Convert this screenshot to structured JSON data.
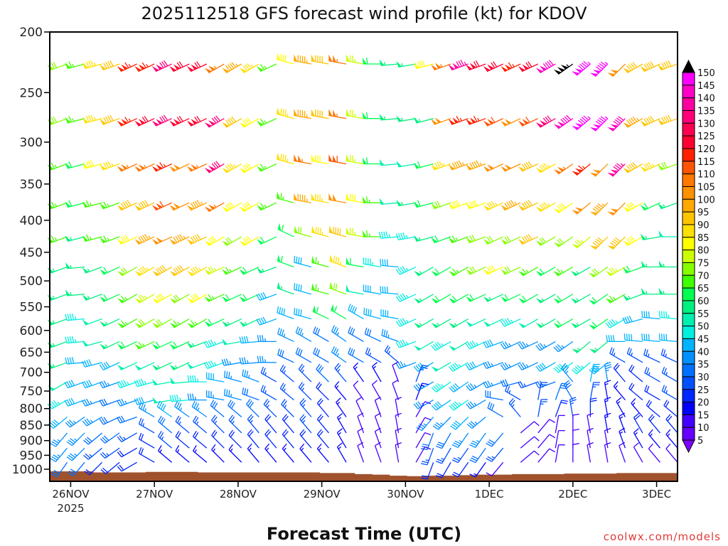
{
  "chart_data": {
    "type": "wind-barb",
    "title": "2025112518 GFS forecast wind profile (kt) for KDOV",
    "xlabel": "Forecast Time (UTC)",
    "credit": "coolwx.com/models",
    "y_ticks": [
      200,
      250,
      300,
      350,
      400,
      450,
      500,
      550,
      600,
      650,
      700,
      750,
      800,
      850,
      900,
      950,
      1000
    ],
    "ylim": [
      200,
      1000
    ],
    "yscale": "log",
    "x_ticks": [
      {
        "hour": 6,
        "label": "26NOV",
        "sub": "2025"
      },
      {
        "hour": 30,
        "label": "27NOV"
      },
      {
        "hour": 54,
        "label": "28NOV"
      },
      {
        "hour": 78,
        "label": "29NOV"
      },
      {
        "hour": 102,
        "label": "30NOV"
      },
      {
        "hour": 126,
        "label": "1DEC"
      },
      {
        "hour": 150,
        "label": "2DEC"
      },
      {
        "hour": 174,
        "label": "3DEC"
      }
    ],
    "xlim_hours": [
      0,
      180
    ],
    "hours": [
      5,
      10,
      15,
      20,
      25,
      30,
      35,
      40,
      45,
      50,
      55,
      60,
      65,
      70,
      75,
      80,
      85,
      90,
      95,
      100,
      105,
      110,
      115,
      120,
      125,
      130,
      135,
      140,
      145,
      150,
      155,
      160,
      165,
      170,
      175,
      180
    ],
    "levels": [
      225,
      275,
      325,
      375,
      425,
      475,
      525,
      575,
      625,
      675,
      725,
      775,
      825,
      875,
      925,
      975
    ],
    "speed_kt": [
      [
        70,
        65,
        85,
        90,
        115,
        115,
        130,
        120,
        120,
        105,
        95,
        85,
        65,
        80,
        95,
        90,
        105,
        75,
        60,
        55,
        55,
        80,
        105,
        135,
        120,
        120,
        115,
        120,
        140,
        155,
        145,
        145,
        100,
        90,
        90,
        90
      ],
      [
        70,
        65,
        85,
        90,
        115,
        120,
        130,
        120,
        120,
        130,
        90,
        80,
        65,
        85,
        95,
        90,
        105,
        75,
        60,
        55,
        55,
        55,
        100,
        115,
        115,
        110,
        100,
        110,
        130,
        140,
        145,
        145,
        140,
        95,
        90,
        90
      ],
      [
        65,
        60,
        80,
        85,
        105,
        105,
        115,
        100,
        105,
        130,
        85,
        80,
        65,
        85,
        105,
        80,
        110,
        75,
        60,
        50,
        50,
        60,
        85,
        95,
        95,
        100,
        100,
        90,
        85,
        105,
        115,
        100,
        135,
        90,
        85,
        70
      ],
      [
        65,
        60,
        65,
        65,
        90,
        90,
        110,
        100,
        95,
        105,
        80,
        80,
        65,
        65,
        95,
        85,
        100,
        80,
        65,
        50,
        55,
        60,
        70,
        80,
        80,
        85,
        95,
        90,
        85,
        80,
        100,
        95,
        100,
        80,
        60,
        55
      ],
      [
        65,
        55,
        65,
        65,
        80,
        95,
        100,
        95,
        90,
        80,
        70,
        80,
        60,
        60,
        70,
        85,
        90,
        75,
        65,
        45,
        45,
        55,
        60,
        65,
        70,
        70,
        70,
        90,
        70,
        70,
        75,
        90,
        90,
        80,
        55,
        50
      ],
      [
        55,
        55,
        55,
        60,
        70,
        85,
        90,
        90,
        85,
        75,
        65,
        60,
        55,
        60,
        40,
        65,
        85,
        60,
        45,
        40,
        45,
        55,
        60,
        65,
        70,
        80,
        70,
        65,
        60,
        65,
        55,
        70,
        75,
        60,
        55,
        55
      ],
      [
        55,
        55,
        55,
        60,
        65,
        75,
        80,
        70,
        80,
        65,
        60,
        60,
        40,
        55,
        40,
        65,
        70,
        50,
        40,
        40,
        45,
        55,
        60,
        60,
        60,
        55,
        60,
        60,
        55,
        60,
        55,
        60,
        65,
        55,
        55,
        55
      ],
      [
        55,
        45,
        50,
        55,
        65,
        70,
        70,
        65,
        65,
        60,
        55,
        55,
        40,
        40,
        40,
        60,
        60,
        40,
        40,
        40,
        45,
        55,
        55,
        55,
        50,
        50,
        45,
        50,
        55,
        60,
        55,
        60,
        45,
        40,
        40,
        45
      ],
      [
        55,
        45,
        50,
        55,
        60,
        65,
        60,
        60,
        55,
        45,
        50,
        40,
        35,
        35,
        35,
        30,
        35,
        30,
        30,
        35,
        45,
        50,
        45,
        50,
        45,
        40,
        35,
        35,
        35,
        35,
        55,
        55,
        40,
        40,
        40,
        40
      ],
      [
        55,
        40,
        40,
        40,
        50,
        50,
        55,
        55,
        50,
        45,
        35,
        35,
        35,
        30,
        30,
        30,
        35,
        30,
        25,
        25,
        35,
        40,
        50,
        45,
        40,
        35,
        35,
        35,
        40,
        45,
        45,
        40,
        25,
        25,
        25,
        25
      ],
      [
        50,
        40,
        40,
        35,
        45,
        45,
        50,
        50,
        45,
        40,
        35,
        35,
        25,
        25,
        25,
        30,
        25,
        15,
        15,
        10,
        25,
        35,
        45,
        40,
        35,
        35,
        30,
        25,
        30,
        35,
        40,
        35,
        20,
        20,
        25,
        25
      ],
      [
        45,
        40,
        35,
        30,
        35,
        40,
        50,
        45,
        35,
        35,
        35,
        30,
        25,
        25,
        25,
        20,
        15,
        10,
        10,
        10,
        15,
        35,
        40,
        45,
        35,
        30,
        25,
        25,
        30,
        30,
        25,
        15,
        15,
        20,
        20,
        25
      ],
      [
        40,
        35,
        35,
        30,
        30,
        35,
        40,
        35,
        35,
        30,
        30,
        30,
        25,
        25,
        25,
        20,
        15,
        10,
        10,
        10,
        10,
        35,
        35,
        40,
        35,
        30,
        25,
        25,
        20,
        25,
        20,
        15,
        15,
        15,
        20,
        20
      ],
      [
        35,
        35,
        30,
        30,
        25,
        25,
        30,
        25,
        25,
        25,
        25,
        25,
        20,
        20,
        25,
        20,
        15,
        10,
        10,
        10,
        10,
        30,
        30,
        35,
        35,
        30,
        10,
        10,
        10,
        10,
        10,
        15,
        15,
        20,
        20,
        20
      ],
      [
        35,
        35,
        25,
        25,
        20,
        20,
        25,
        20,
        20,
        20,
        20,
        20,
        20,
        20,
        20,
        20,
        15,
        10,
        10,
        10,
        10,
        25,
        25,
        25,
        30,
        25,
        10,
        10,
        10,
        10,
        10,
        10,
        15,
        15,
        15,
        15
      ],
      [
        30,
        30,
        20,
        20,
        20,
        20,
        15,
        15,
        15,
        15,
        15,
        15,
        15,
        15,
        15,
        15,
        15,
        10,
        10,
        10,
        10,
        20,
        20,
        20,
        15,
        10,
        10,
        10,
        10,
        10,
        10,
        10,
        10,
        10,
        10,
        10
      ]
    ],
    "direction_deg": [
      [
        250,
        255,
        255,
        250,
        245,
        245,
        245,
        245,
        245,
        240,
        240,
        240,
        245,
        285,
        280,
        280,
        280,
        280,
        270,
        265,
        260,
        255,
        250,
        250,
        250,
        245,
        245,
        245,
        240,
        235,
        230,
        225,
        225,
        240,
        245,
        250
      ],
      [
        250,
        255,
        255,
        250,
        245,
        245,
        245,
        245,
        245,
        240,
        240,
        240,
        245,
        285,
        280,
        280,
        280,
        280,
        270,
        265,
        260,
        255,
        250,
        250,
        250,
        245,
        245,
        245,
        240,
        235,
        230,
        225,
        225,
        240,
        245,
        250
      ],
      [
        250,
        255,
        255,
        250,
        245,
        245,
        245,
        245,
        245,
        240,
        240,
        240,
        245,
        285,
        280,
        280,
        280,
        280,
        270,
        265,
        260,
        255,
        250,
        250,
        250,
        245,
        245,
        245,
        240,
        235,
        230,
        225,
        225,
        240,
        245,
        250
      ],
      [
        250,
        255,
        255,
        250,
        245,
        245,
        245,
        245,
        245,
        240,
        240,
        240,
        245,
        285,
        280,
        280,
        280,
        280,
        270,
        265,
        260,
        255,
        250,
        250,
        250,
        245,
        245,
        245,
        240,
        235,
        230,
        225,
        225,
        240,
        245,
        250
      ],
      [
        250,
        255,
        255,
        250,
        245,
        245,
        245,
        245,
        245,
        240,
        240,
        240,
        245,
        295,
        285,
        285,
        285,
        280,
        270,
        265,
        260,
        255,
        250,
        250,
        250,
        245,
        245,
        245,
        240,
        235,
        230,
        225,
        225,
        240,
        260,
        270
      ],
      [
        250,
        265,
        250,
        245,
        240,
        240,
        240,
        240,
        240,
        245,
        245,
        245,
        250,
        290,
        285,
        285,
        290,
        280,
        280,
        275,
        245,
        240,
        240,
        240,
        245,
        245,
        245,
        240,
        240,
        240,
        240,
        235,
        240,
        250,
        270,
        270
      ],
      [
        250,
        265,
        250,
        245,
        240,
        240,
        240,
        240,
        240,
        245,
        245,
        245,
        250,
        290,
        285,
        285,
        290,
        280,
        280,
        275,
        245,
        240,
        240,
        240,
        245,
        245,
        245,
        240,
        240,
        240,
        240,
        235,
        240,
        250,
        270,
        270
      ],
      [
        250,
        265,
        250,
        245,
        240,
        240,
        240,
        240,
        240,
        245,
        245,
        245,
        250,
        290,
        285,
        295,
        300,
        300,
        285,
        280,
        245,
        240,
        240,
        240,
        245,
        245,
        245,
        240,
        240,
        240,
        240,
        235,
        240,
        255,
        275,
        275
      ],
      [
        250,
        265,
        255,
        245,
        245,
        245,
        245,
        245,
        250,
        250,
        260,
        265,
        270,
        295,
        300,
        300,
        305,
        300,
        295,
        290,
        250,
        240,
        240,
        240,
        245,
        250,
        245,
        245,
        240,
        235,
        230,
        230,
        270,
        275,
        275,
        275
      ],
      [
        250,
        265,
        255,
        245,
        245,
        245,
        245,
        245,
        250,
        250,
        260,
        265,
        270,
        295,
        300,
        300,
        305,
        300,
        300,
        310,
        250,
        240,
        240,
        240,
        245,
        250,
        245,
        245,
        240,
        235,
        230,
        230,
        300,
        300,
        295,
        295
      ],
      [
        240,
        250,
        250,
        250,
        250,
        255,
        260,
        265,
        270,
        280,
        285,
        290,
        300,
        310,
        315,
        315,
        320,
        325,
        330,
        340,
        20,
        240,
        235,
        235,
        240,
        250,
        255,
        250,
        250,
        320,
        10,
        350,
        320,
        310,
        300,
        300
      ],
      [
        240,
        250,
        250,
        250,
        250,
        255,
        260,
        265,
        270,
        280,
        285,
        290,
        300,
        310,
        315,
        315,
        320,
        325,
        330,
        340,
        20,
        240,
        235,
        235,
        240,
        280,
        300,
        10,
        20,
        330,
        10,
        350,
        320,
        310,
        300,
        300
      ],
      [
        230,
        235,
        240,
        245,
        250,
        300,
        305,
        305,
        305,
        310,
        310,
        315,
        315,
        315,
        320,
        320,
        325,
        335,
        340,
        350,
        30,
        220,
        225,
        225,
        230,
        300,
        320,
        10,
        20,
        350,
        0,
        350,
        330,
        320,
        310,
        310
      ],
      [
        220,
        225,
        230,
        235,
        240,
        300,
        310,
        310,
        310,
        315,
        315,
        320,
        320,
        320,
        320,
        320,
        330,
        340,
        340,
        350,
        30,
        200,
        210,
        215,
        215,
        220,
        50,
        40,
        10,
        0,
        350,
        350,
        340,
        330,
        320,
        320
      ],
      [
        220,
        225,
        230,
        235,
        240,
        300,
        310,
        310,
        310,
        315,
        315,
        320,
        320,
        320,
        320,
        320,
        330,
        340,
        340,
        350,
        30,
        200,
        210,
        215,
        215,
        220,
        50,
        40,
        10,
        0,
        350,
        350,
        340,
        330,
        320,
        320
      ],
      [
        215,
        220,
        225,
        230,
        240,
        300,
        310,
        310,
        310,
        315,
        315,
        320,
        320,
        320,
        320,
        320,
        330,
        340,
        340,
        350,
        30,
        200,
        210,
        215,
        215,
        220,
        50,
        40,
        10,
        0,
        350,
        350,
        340,
        330,
        320,
        320
      ]
    ],
    "surface_pressure": [
      1008,
      1008,
      1012,
      1012,
      1012,
      1010,
      1010,
      1010,
      1012,
      1012,
      1012,
      1012,
      1012,
      1012,
      1012,
      1014,
      1014,
      1018,
      1020,
      1024,
      1026,
      1024,
      1024,
      1022,
      1020,
      1020,
      1018,
      1018,
      1018,
      1016,
      1016,
      1016,
      1014,
      1014,
      1014,
      1014
    ],
    "colorbar": {
      "labels": [
        150,
        145,
        140,
        135,
        130,
        125,
        120,
        115,
        110,
        105,
        100,
        95,
        90,
        85,
        80,
        75,
        70,
        65,
        60,
        55,
        50,
        45,
        40,
        35,
        30,
        25,
        20,
        15,
        10,
        5
      ],
      "colors": [
        "#8000ff",
        "#6600ff",
        "#4400ff",
        "#0000ff",
        "#0026ff",
        "#0050ff",
        "#0070ff",
        "#0090ff",
        "#00b4ff",
        "#00f0e0",
        "#00f0b0",
        "#00f080",
        "#00ff50",
        "#40ff00",
        "#88ff00",
        "#ccff00",
        "#ffff00",
        "#ffe000",
        "#ffc400",
        "#ffa800",
        "#ff9000",
        "#ff7800",
        "#ff5400",
        "#ff2000",
        "#ff0030",
        "#ff0050",
        "#ff0078",
        "#ff00a0",
        "#ff00c8",
        "#ff00ff"
      ],
      "over_color": "#000000",
      "under_color": "#8000ff"
    },
    "terrain_color": "#a0522d"
  }
}
